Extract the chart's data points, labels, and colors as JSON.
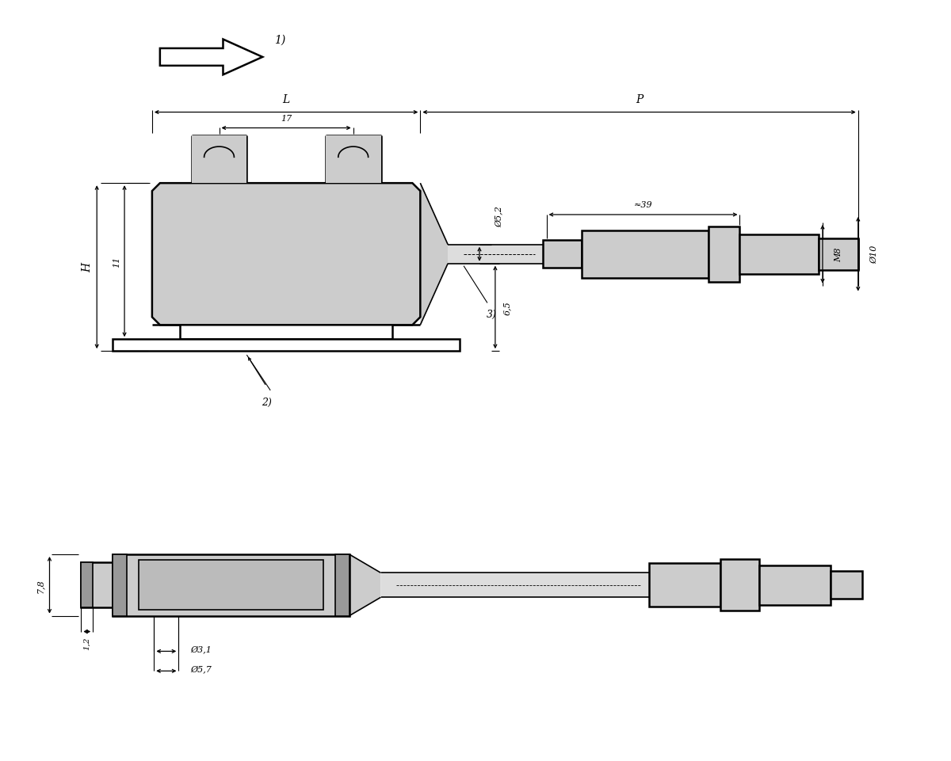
{
  "bg_color": "#ffffff",
  "line_color": "#000000",
  "fill_color_light": "#cccccc",
  "fill_color_dark": "#999999",
  "fig_width": 12.0,
  "fig_height": 9.62,
  "dpi": 100,
  "labels": {
    "arrow_label": "1)",
    "dim_L": "L",
    "dim_P": "P",
    "dim_17": "17",
    "dim_phi52": "Ø5,2",
    "dim_approx39": "≈39",
    "dim_H": "H",
    "dim_11": "11",
    "dim_65": "6,5",
    "dim_M8": "M8",
    "dim_phi10": "Ø10",
    "label_2": "2)",
    "label_3": "3)",
    "dim_78": "7,8",
    "dim_12": "1,2",
    "dim_phi31": "Ø3,1",
    "dim_phi57": "Ø5,7"
  }
}
